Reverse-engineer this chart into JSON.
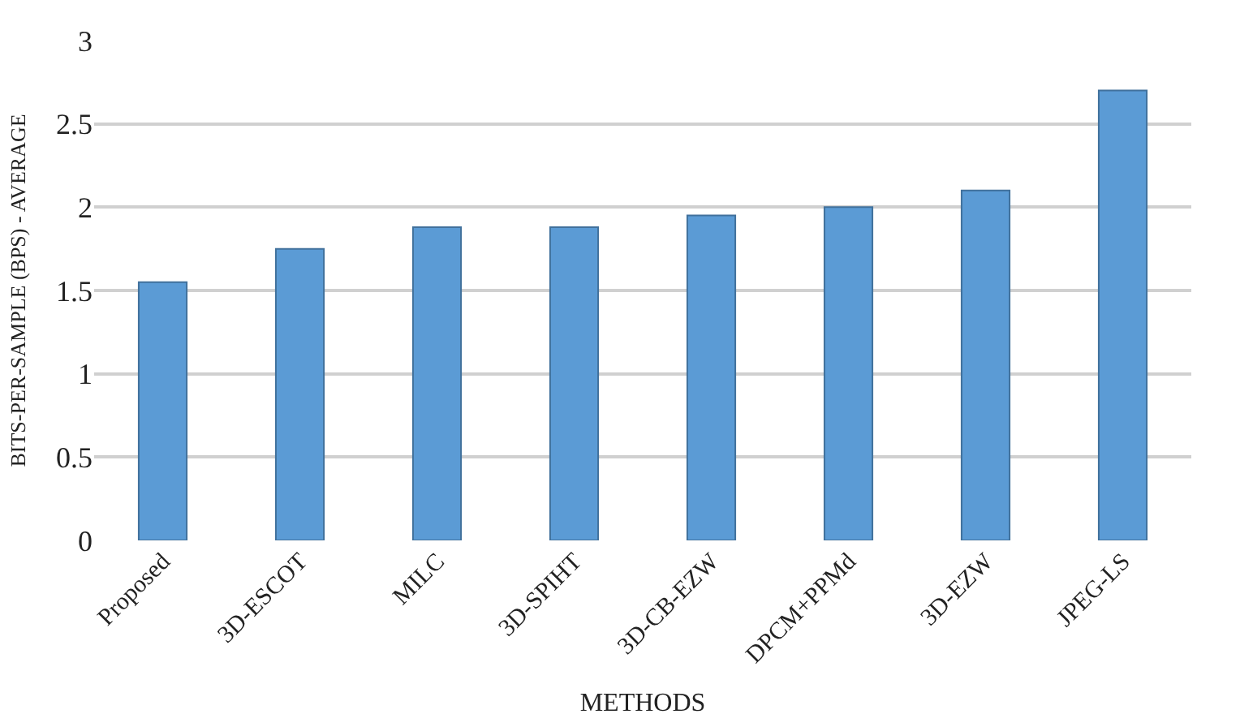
{
  "chart_data": {
    "type": "bar",
    "xlabel": "METHODS",
    "ylabel": "BITS-PER-SAMPLE (BPS) - AVERAGE",
    "categories": [
      "Proposed",
      "3D-ESCOT",
      "MILC",
      "3D-SPIHT",
      "3D-CB-EZW",
      "DPCM+PPMd",
      "3D-EZW",
      "JPEG-LS"
    ],
    "values": [
      1.55,
      1.75,
      1.88,
      1.88,
      1.95,
      2.0,
      2.1,
      2.7
    ],
    "color": "#5b9bd5",
    "ylim": [
      0,
      3
    ],
    "yticks": [
      0,
      0.5,
      1,
      1.5,
      2,
      2.5,
      3
    ],
    "grid": "y"
  }
}
